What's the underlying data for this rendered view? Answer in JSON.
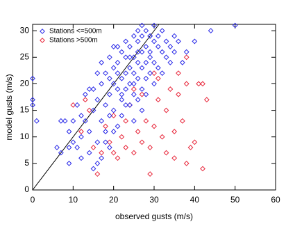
{
  "chart_data": {
    "type": "scatter",
    "xlabel": "observed gusts (m/s)",
    "ylabel": "model gusts (m/s)",
    "xlim": [
      0,
      60
    ],
    "xticks": [
      0,
      10,
      20,
      30,
      40,
      50,
      60
    ],
    "ylim": [
      0,
      31.2
    ],
    "yticks": [
      0,
      5,
      10,
      15,
      20,
      25,
      30
    ],
    "legend": "upper left",
    "grid": false,
    "series": [
      {
        "name": "Stations <=500m",
        "color": "#2a2ae8",
        "x": [
          0,
          0,
          0,
          1,
          6,
          7,
          7,
          8,
          9,
          9,
          10,
          10,
          11,
          11,
          12,
          12,
          13,
          13,
          14,
          14,
          15,
          15,
          15,
          16,
          16,
          16,
          17,
          17,
          17,
          18,
          18,
          18,
          19,
          19,
          19,
          19,
          20,
          20,
          20,
          20,
          21,
          21,
          21,
          21,
          22,
          22,
          22,
          22,
          23,
          23,
          23,
          23,
          24,
          24,
          24,
          24,
          25,
          25,
          25,
          25,
          25,
          26,
          26,
          26,
          26,
          26,
          27,
          27,
          27,
          27,
          27,
          28,
          28,
          28,
          28,
          28,
          29,
          29,
          29,
          29,
          30,
          30,
          30,
          30,
          31,
          31,
          31,
          32,
          32,
          32,
          33,
          33,
          34,
          34,
          35,
          35,
          36,
          37,
          38,
          40,
          44,
          50,
          16,
          18,
          20,
          22,
          24,
          26,
          17,
          19,
          21,
          23,
          12,
          14,
          9,
          25,
          27,
          29
        ],
        "values": [
          17,
          16,
          21,
          13,
          8,
          13,
          7,
          13,
          11,
          5,
          13,
          9,
          16,
          8,
          14,
          10,
          13,
          18,
          7,
          11,
          15,
          19,
          4,
          22,
          17,
          9,
          20,
          13,
          24,
          22,
          16,
          11,
          21,
          25,
          14,
          18,
          23,
          20,
          15,
          27,
          24,
          19,
          12,
          22,
          26,
          21,
          17,
          14,
          25,
          22,
          19,
          28,
          27,
          23,
          20,
          16,
          29,
          25,
          22,
          18,
          13,
          28,
          24,
          21,
          17,
          30,
          26,
          29,
          23,
          19,
          15,
          27,
          30,
          24,
          21,
          18,
          29,
          26,
          22,
          25,
          28,
          31,
          24,
          20,
          27,
          29,
          23,
          30,
          26,
          22,
          28,
          25,
          27,
          24,
          29,
          26,
          28,
          24,
          26,
          28,
          30,
          31,
          5,
          9,
          11,
          18,
          25,
          26,
          6,
          8,
          27,
          16,
          6,
          19,
          8,
          20,
          31,
          29
        ]
      },
      {
        "name": "Stations >500m",
        "color": "#e8283c",
        "x": [
          10,
          12,
          14,
          15,
          16,
          17,
          18,
          19,
          20,
          21,
          22,
          23,
          24,
          25,
          26,
          27,
          28,
          29,
          29,
          30,
          31,
          32,
          33,
          33,
          34,
          35,
          35,
          36,
          36,
          37,
          38,
          38,
          39,
          40,
          41,
          42,
          42,
          43,
          30,
          27,
          25,
          23,
          20,
          31,
          38,
          13
        ],
        "values": [
          16,
          11,
          15,
          8,
          3,
          7,
          12,
          9,
          14,
          6,
          10,
          13,
          16,
          7,
          11,
          9,
          13,
          8,
          3,
          12,
          17,
          10,
          7,
          15,
          19,
          11,
          6,
          22,
          18,
          13,
          5,
          20,
          8,
          9,
          20,
          20,
          4,
          17,
          22,
          18,
          19,
          8,
          7,
          21,
          25,
          17
        ]
      }
    ]
  }
}
